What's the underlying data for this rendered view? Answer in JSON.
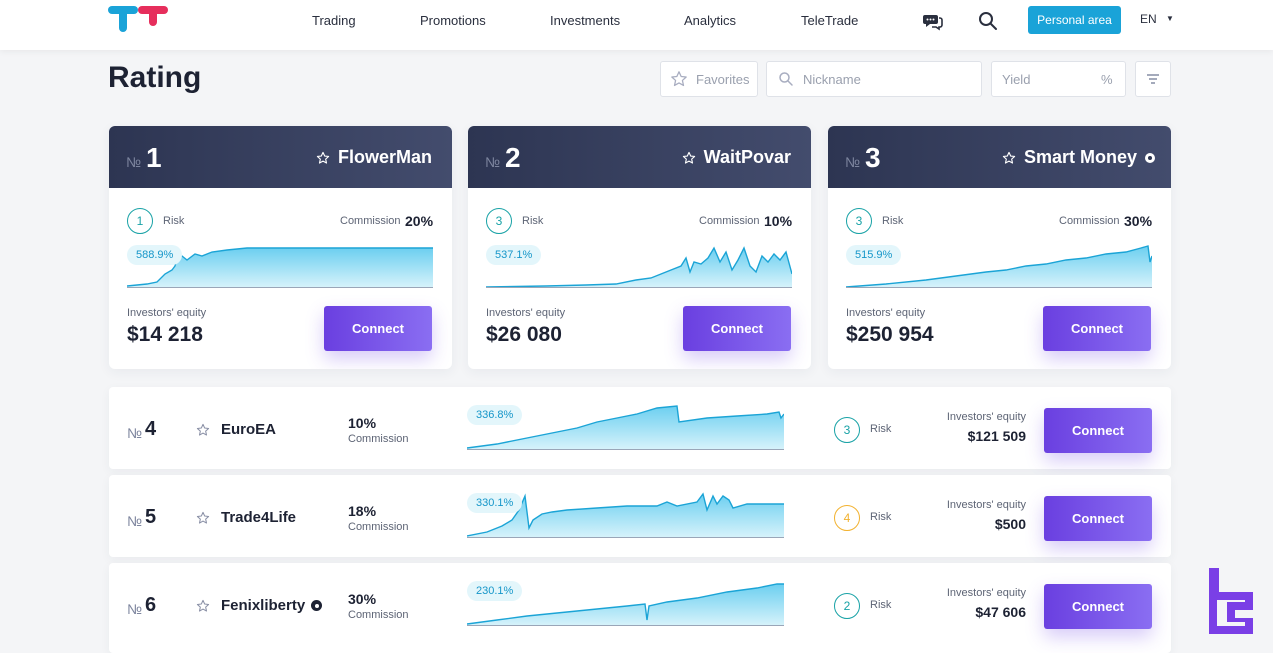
{
  "nav": {
    "items": [
      "Trading",
      "Promotions",
      "Investments",
      "Analytics",
      "TeleTrade"
    ],
    "personal_area": "Personal area",
    "language": "EN",
    "chat_icon": "chat-icon",
    "search_icon": "search-icon"
  },
  "page": {
    "title": "Rating"
  },
  "filters": {
    "favorites": "Favorites",
    "nickname_placeholder": "Nickname",
    "yield_placeholder": "Yield",
    "yield_unit": "%"
  },
  "cards": [
    {
      "no_symbol": "№",
      "rank": "1",
      "name": "FlowerMan",
      "risk": "1",
      "risk_label": "Risk",
      "commission_label": "Commission",
      "commission": "20%",
      "yield": "588.9%",
      "equity_label": "Investors' equity",
      "equity": "$14 218",
      "connect": "Connect"
    },
    {
      "no_symbol": "№",
      "rank": "2",
      "name": "WaitPovar",
      "risk": "3",
      "risk_label": "Risk",
      "commission_label": "Commission",
      "commission": "10%",
      "yield": "537.1%",
      "equity_label": "Investors' equity",
      "equity": "$26 080",
      "connect": "Connect"
    },
    {
      "no_symbol": "№",
      "rank": "3",
      "name": "Smart Money",
      "risk": "3",
      "risk_label": "Risk",
      "commission_label": "Commission",
      "commission": "30%",
      "yield": "515.9%",
      "equity_label": "Investors' equity",
      "equity": "$250 954",
      "connect": "Connect"
    }
  ],
  "rows": [
    {
      "no_symbol": "№",
      "rank": "4",
      "name": "EuroEA",
      "commission": "10%",
      "commission_label": "Commission",
      "yield": "336.8%",
      "risk": "3",
      "risk_label": "Risk",
      "equity_label": "Investors' equity",
      "equity": "$121 509",
      "connect": "Connect"
    },
    {
      "no_symbol": "№",
      "rank": "5",
      "name": "Trade4Life",
      "commission": "18%",
      "commission_label": "Commission",
      "yield": "330.1%",
      "risk": "4",
      "risk_label": "Risk",
      "equity_label": "Investors' equity",
      "equity": "$500",
      "connect": "Connect"
    },
    {
      "no_symbol": "№",
      "rank": "6",
      "name": "Fenixliberty",
      "commission": "30%",
      "commission_label": "Commission",
      "yield": "230.1%",
      "risk": "2",
      "risk_label": "Risk",
      "equity_label": "Investors' equity",
      "equity": "$47 606",
      "connect": "Connect"
    }
  ],
  "colors": {
    "accent_blue": "#1aa3d8",
    "connect_purple": "#6a3fe0",
    "header_dark": "#2d3552",
    "risk_teal": "#18a2a6",
    "risk_orange": "#f2b230"
  }
}
